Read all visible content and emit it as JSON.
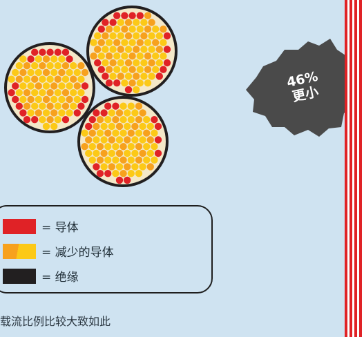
{
  "colors": {
    "background": "#cfe3f1",
    "conductor": "#e02226",
    "reduced_conductor": "#f7a11d",
    "reduced_conductor_light": "#fcc917",
    "insulation": "#221f20",
    "badge": "#4a4a4a"
  },
  "badge": {
    "line1": "46%",
    "line2": "更小"
  },
  "legend": {
    "items": [
      {
        "key": "conductor",
        "label": "= 导体"
      },
      {
        "key": "reduced_conductor",
        "label": "= 减少的导体"
      },
      {
        "key": "insulation",
        "label": "= 绝缘"
      }
    ]
  },
  "caption": "载流比例比较大致如此"
}
